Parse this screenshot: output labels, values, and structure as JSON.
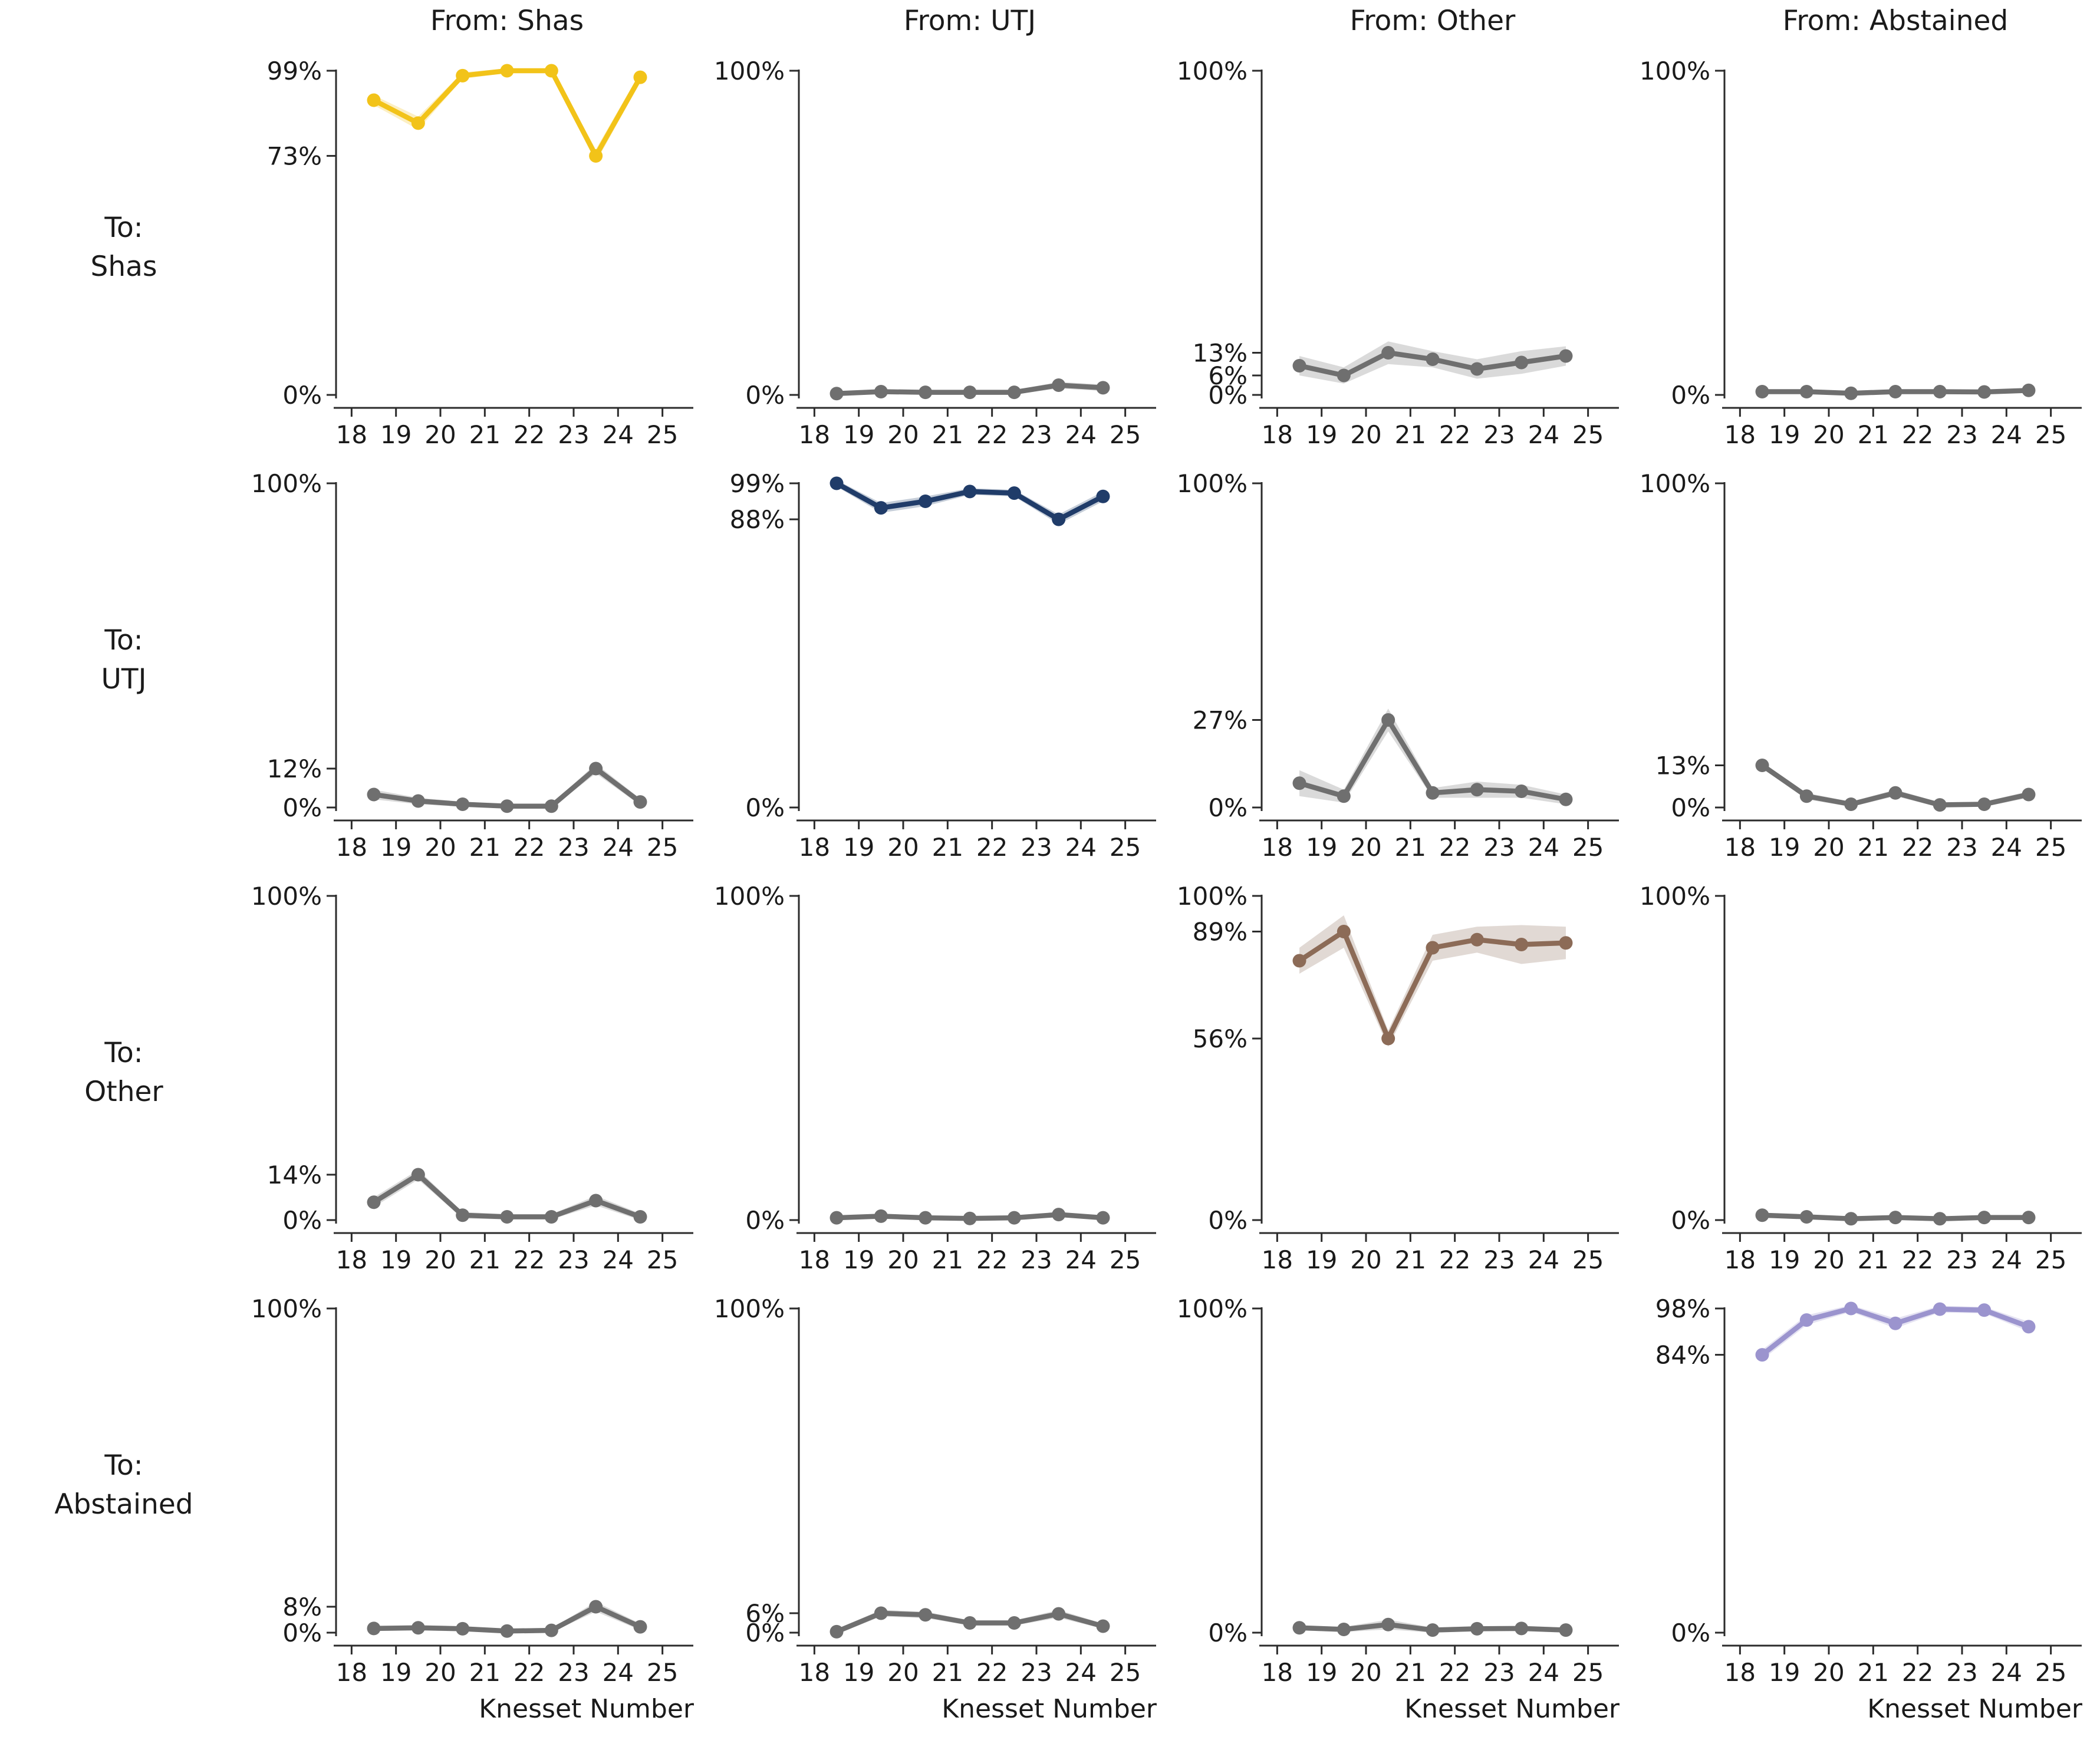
{
  "figure": {
    "col_headers": [
      "From: Shas",
      "From: UTJ",
      "From: Other",
      "From: Abstained"
    ],
    "row_headers": [
      [
        "To:",
        "Shas"
      ],
      [
        "To:",
        "UTJ"
      ],
      [
        "To:",
        "Other"
      ],
      [
        "To:",
        "Abstained"
      ]
    ],
    "xlabel": "Knesset Number",
    "x_tick_labels": [
      18,
      19,
      20,
      21,
      22,
      23,
      24,
      25
    ],
    "colors": {
      "shas": "#F2C319",
      "utj": "#203C69",
      "other": "#8C6B57",
      "abstained": "#9B94CE",
      "neutral": "#6F6F6F",
      "spine": "#2B2B2B",
      "text": "#1A1A1A"
    }
  },
  "chart_data": [
    {
      "type": "line",
      "from": "Shas",
      "to": "Shas",
      "color": "#F2C319",
      "x": [
        18.5,
        19.5,
        20.5,
        21.5,
        22.5,
        23.5,
        24.5
      ],
      "values": [
        90,
        83,
        97.5,
        99,
        99,
        73,
        97
      ],
      "ci": [
        1.5,
        2,
        1,
        0.7,
        0.7,
        2,
        1.5
      ],
      "y_ticks": [
        {
          "v": 99,
          "label": "99%"
        },
        {
          "v": 73,
          "label": "73%"
        },
        {
          "v": 0,
          "label": "0%"
        }
      ]
    },
    {
      "type": "line",
      "from": "UTJ",
      "to": "Shas",
      "color": "#6F6F6F",
      "x": [
        18.5,
        19.5,
        20.5,
        21.5,
        22.5,
        23.5,
        24.5
      ],
      "values": [
        0.4,
        1,
        0.8,
        0.8,
        0.8,
        3,
        2.2
      ],
      "ci": [
        0.7,
        0.7,
        0.7,
        0.7,
        0.7,
        1,
        1
      ],
      "y_ticks": [
        {
          "v": 100,
          "label": "100%"
        },
        {
          "v": 0,
          "label": "0%"
        }
      ]
    },
    {
      "type": "line",
      "from": "Other",
      "to": "Shas",
      "color": "#6F6F6F",
      "x": [
        18.5,
        19.5,
        20.5,
        21.5,
        22.5,
        23.5,
        24.5
      ],
      "values": [
        9,
        6,
        13,
        11,
        8,
        10,
        12
      ],
      "ci": [
        3,
        2.5,
        3.5,
        2.5,
        3,
        3.5,
        3
      ],
      "y_ticks": [
        {
          "v": 100,
          "label": "100%"
        },
        {
          "v": 13,
          "label": "13%"
        },
        {
          "v": 6,
          "label": "6%"
        },
        {
          "v": 0,
          "label": "0%"
        }
      ]
    },
    {
      "type": "line",
      "from": "Abstained",
      "to": "Shas",
      "color": "#6F6F6F",
      "x": [
        18.5,
        19.5,
        20.5,
        21.5,
        22.5,
        23.5,
        24.5
      ],
      "values": [
        1,
        1,
        0.5,
        1,
        1,
        0.9,
        1.4
      ],
      "ci": [
        0.6,
        0.6,
        0.6,
        0.6,
        0.6,
        0.6,
        0.6
      ],
      "y_ticks": [
        {
          "v": 100,
          "label": "100%"
        },
        {
          "v": 0,
          "label": "0%"
        }
      ]
    },
    {
      "type": "line",
      "from": "Shas",
      "to": "UTJ",
      "color": "#6F6F6F",
      "x": [
        18.5,
        19.5,
        20.5,
        21.5,
        22.5,
        23.5,
        24.5
      ],
      "values": [
        4,
        2,
        1,
        0.4,
        0.4,
        12,
        1.7
      ],
      "ci": [
        1.5,
        1,
        0.8,
        0.6,
        0.6,
        1.5,
        1
      ],
      "y_ticks": [
        {
          "v": 100,
          "label": "100%"
        },
        {
          "v": 12,
          "label": "12%"
        },
        {
          "v": 0,
          "label": "0%"
        }
      ]
    },
    {
      "type": "line",
      "from": "UTJ",
      "to": "UTJ",
      "color": "#203C69",
      "x": [
        18.5,
        19.5,
        20.5,
        21.5,
        22.5,
        23.5,
        24.5
      ],
      "values": [
        99,
        91.5,
        93.5,
        96.5,
        96,
        88,
        95
      ],
      "ci": [
        1,
        1.5,
        1.5,
        1,
        1,
        1.5,
        1.5
      ],
      "y_ticks": [
        {
          "v": 99,
          "label": "99%"
        },
        {
          "v": 88,
          "label": "88%"
        },
        {
          "v": 0,
          "label": "0%"
        }
      ]
    },
    {
      "type": "line",
      "from": "Other",
      "to": "UTJ",
      "color": "#6F6F6F",
      "x": [
        18.5,
        19.5,
        20.5,
        21.5,
        22.5,
        23.5,
        24.5
      ],
      "values": [
        7.5,
        3.5,
        27,
        4.5,
        5.5,
        5,
        2.5
      ],
      "ci": [
        4,
        2,
        3.5,
        1.5,
        2.5,
        2,
        1.5
      ],
      "y_ticks": [
        {
          "v": 100,
          "label": "100%"
        },
        {
          "v": 27,
          "label": "27%"
        },
        {
          "v": 0,
          "label": "0%"
        }
      ]
    },
    {
      "type": "line",
      "from": "Abstained",
      "to": "UTJ",
      "color": "#6F6F6F",
      "x": [
        18.5,
        19.5,
        20.5,
        21.5,
        22.5,
        23.5,
        24.5
      ],
      "values": [
        13,
        3.5,
        1,
        4.5,
        0.8,
        1,
        4
      ],
      "ci": [
        1,
        1,
        0.8,
        1,
        0.8,
        0.8,
        1
      ],
      "y_ticks": [
        {
          "v": 100,
          "label": "100%"
        },
        {
          "v": 13,
          "label": "13%"
        },
        {
          "v": 0,
          "label": "0%"
        }
      ]
    },
    {
      "type": "line",
      "from": "Shas",
      "to": "Other",
      "color": "#6F6F6F",
      "x": [
        18.5,
        19.5,
        20.5,
        21.5,
        22.5,
        23.5,
        24.5
      ],
      "values": [
        5.5,
        14,
        1.5,
        1,
        1,
        6,
        1
      ],
      "ci": [
        1.5,
        1.5,
        1,
        0.8,
        0.8,
        1.5,
        1
      ],
      "y_ticks": [
        {
          "v": 100,
          "label": "100%"
        },
        {
          "v": 14,
          "label": "14%"
        },
        {
          "v": 0,
          "label": "0%"
        }
      ]
    },
    {
      "type": "line",
      "from": "UTJ",
      "to": "Other",
      "color": "#6F6F6F",
      "x": [
        18.5,
        19.5,
        20.5,
        21.5,
        22.5,
        23.5,
        24.5
      ],
      "values": [
        0.7,
        1.2,
        0.7,
        0.5,
        0.7,
        1.7,
        0.7
      ],
      "ci": [
        0.5,
        0.5,
        0.5,
        0.5,
        0.5,
        0.5,
        0.5
      ],
      "y_ticks": [
        {
          "v": 100,
          "label": "100%"
        },
        {
          "v": 0,
          "label": "0%"
        }
      ]
    },
    {
      "type": "line",
      "from": "Other",
      "to": "Other",
      "color": "#8C6B57",
      "x": [
        18.5,
        19.5,
        20.5,
        21.5,
        22.5,
        23.5,
        24.5
      ],
      "values": [
        80,
        89,
        56,
        84,
        86.5,
        85,
        85.5
      ],
      "ci": [
        4,
        5,
        2.5,
        4,
        4,
        6,
        5
      ],
      "y_ticks": [
        {
          "v": 100,
          "label": "100%"
        },
        {
          "v": 89,
          "label": "89%"
        },
        {
          "v": 56,
          "label": "56%"
        },
        {
          "v": 0,
          "label": "0%"
        }
      ]
    },
    {
      "type": "line",
      "from": "Abstained",
      "to": "Other",
      "color": "#6F6F6F",
      "x": [
        18.5,
        19.5,
        20.5,
        21.5,
        22.5,
        23.5,
        24.5
      ],
      "values": [
        1.5,
        1,
        0.4,
        0.8,
        0.4,
        0.8,
        0.8
      ],
      "ci": [
        0.6,
        0.6,
        0.6,
        0.6,
        0.6,
        0.6,
        0.6
      ],
      "y_ticks": [
        {
          "v": 100,
          "label": "100%"
        },
        {
          "v": 0,
          "label": "0%"
        }
      ]
    },
    {
      "type": "line",
      "from": "Shas",
      "to": "Abstained",
      "color": "#6F6F6F",
      "x": [
        18.5,
        19.5,
        20.5,
        21.5,
        22.5,
        23.5,
        24.5
      ],
      "values": [
        1.3,
        1.5,
        1.2,
        0.5,
        0.7,
        8,
        1.8
      ],
      "ci": [
        0.8,
        0.8,
        0.8,
        0.6,
        0.6,
        1.5,
        1
      ],
      "y_ticks": [
        {
          "v": 100,
          "label": "100%"
        },
        {
          "v": 8,
          "label": "8%"
        },
        {
          "v": 0,
          "label": "0%"
        }
      ]
    },
    {
      "type": "line",
      "from": "UTJ",
      "to": "Abstained",
      "color": "#6F6F6F",
      "x": [
        18.5,
        19.5,
        20.5,
        21.5,
        22.5,
        23.5,
        24.5
      ],
      "values": [
        0.3,
        6,
        5.5,
        3,
        3,
        5.8,
        2
      ],
      "ci": [
        0.8,
        1,
        1,
        0.8,
        0.8,
        1.2,
        0.8
      ],
      "y_ticks": [
        {
          "v": 100,
          "label": "100%"
        },
        {
          "v": 6,
          "label": "6%"
        },
        {
          "v": 0,
          "label": "0%"
        }
      ]
    },
    {
      "type": "line",
      "from": "Other",
      "to": "Abstained",
      "color": "#6F6F6F",
      "x": [
        18.5,
        19.5,
        20.5,
        21.5,
        22.5,
        23.5,
        24.5
      ],
      "values": [
        1.5,
        1,
        2.5,
        0.8,
        1.2,
        1.3,
        0.8
      ],
      "ci": [
        0.8,
        0.8,
        1.5,
        0.8,
        0.8,
        0.8,
        0.8
      ],
      "y_ticks": [
        {
          "v": 100,
          "label": "100%"
        },
        {
          "v": 0,
          "label": "0%"
        }
      ]
    },
    {
      "type": "line",
      "from": "Abstained",
      "to": "Abstained",
      "color": "#9B94CE",
      "x": [
        18.5,
        19.5,
        20.5,
        21.5,
        22.5,
        23.5,
        24.5
      ],
      "values": [
        84,
        94.5,
        98,
        93.5,
        97.8,
        97.5,
        92.5
      ],
      "ci": [
        1.5,
        1.5,
        1,
        1.5,
        1,
        1,
        1.5
      ],
      "y_ticks": [
        {
          "v": 98,
          "label": "98%"
        },
        {
          "v": 84,
          "label": "84%"
        },
        {
          "v": 0,
          "label": "0%"
        }
      ]
    }
  ]
}
